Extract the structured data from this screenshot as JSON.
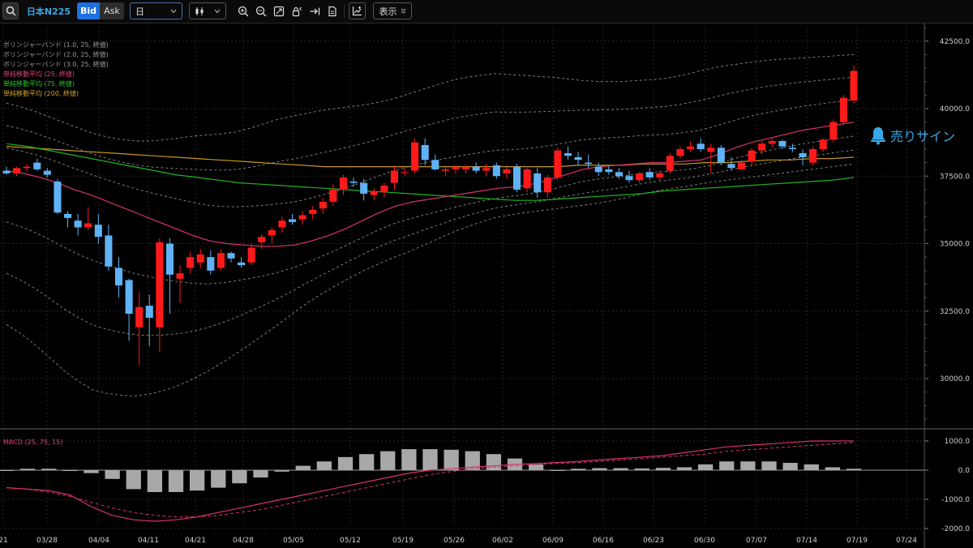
{
  "toolbar": {
    "symbol": "日本N225",
    "bid_label": "Bid",
    "ask_label": "Ask",
    "timeframe": "日",
    "display_label": "表示"
  },
  "legend": {
    "bb1": "ボリンジャーバンド (1.0, 25, 終値)",
    "bb2": "ボリンジャーバンド (2.0, 25, 終値)",
    "bb3": "ボリンジャーバンド (3.0, 25, 終値)",
    "sma25": "単純移動平均 (25, 終値)",
    "sma75": "単純移動平均 (75, 終値)",
    "sma200": "単純移動平均 (200, 終値)",
    "macd": "MACD (25, 75, 15)"
  },
  "signal": {
    "label": "売りサイン"
  },
  "colors": {
    "up": "#ff1a1a",
    "down": "#5fb2f5",
    "sma25": "#d6336c",
    "sma75": "#22b322",
    "sma200": "#c8961e",
    "bollinger": "#8a8a8a",
    "signal": "#3aa8e6",
    "accent": "#1f6fe0"
  },
  "chart_data": [
    {
      "type": "candlestick",
      "x_tick_labels": [
        "21",
        "03/28",
        "04/04",
        "04/11",
        "04/21",
        "04/28",
        "05/05",
        "05/12",
        "05/19",
        "05/26",
        "06/02",
        "06/09",
        "06/16",
        "06/23",
        "06/30",
        "07/07",
        "07/14",
        "07/19",
        "07/24"
      ],
      "y_tick_labels": [
        "42500.0",
        "40000.0",
        "37500.0",
        "35000.0",
        "32500.0",
        "30000.0"
      ],
      "ylim": [
        27800,
        43600
      ],
      "last_visible_date": "07/18",
      "candles": [
        {
          "d": "03/19",
          "o": 37700,
          "h": 37850,
          "l": 37550,
          "c": 37600
        },
        {
          "d": "03/21",
          "o": 37600,
          "h": 37850,
          "l": 37500,
          "c": 37800
        },
        {
          "d": "03/24",
          "o": 37800,
          "h": 37950,
          "l": 37650,
          "c": 37850
        },
        {
          "d": "03/25",
          "o": 38000,
          "h": 38150,
          "l": 37700,
          "c": 37750
        },
        {
          "d": "03/26",
          "o": 37700,
          "h": 37800,
          "l": 37450,
          "c": 37550
        },
        {
          "d": "03/27",
          "o": 37300,
          "h": 37400,
          "l": 36100,
          "c": 36150
        },
        {
          "d": "03/28",
          "o": 36100,
          "h": 36200,
          "l": 35600,
          "c": 35950
        },
        {
          "d": "03/31",
          "o": 35850,
          "h": 36100,
          "l": 35300,
          "c": 35600
        },
        {
          "d": "04/01",
          "o": 35600,
          "h": 36350,
          "l": 35500,
          "c": 35750
        },
        {
          "d": "04/02",
          "o": 35700,
          "h": 36100,
          "l": 35000,
          "c": 35250
        },
        {
          "d": "04/03",
          "o": 35300,
          "h": 35700,
          "l": 34000,
          "c": 34150
        },
        {
          "d": "04/04",
          "o": 34100,
          "h": 34500,
          "l": 33000,
          "c": 33450
        },
        {
          "d": "04/07",
          "o": 33650,
          "h": 33700,
          "l": 31400,
          "c": 32400
        },
        {
          "d": "04/08",
          "o": 31900,
          "h": 33200,
          "l": 30500,
          "c": 32650
        },
        {
          "d": "04/09",
          "o": 32700,
          "h": 33100,
          "l": 31200,
          "c": 32250
        },
        {
          "d": "04/10",
          "o": 31900,
          "h": 35200,
          "l": 31000,
          "c": 35050
        },
        {
          "d": "04/11",
          "o": 35000,
          "h": 35200,
          "l": 32400,
          "c": 33850
        },
        {
          "d": "04/14",
          "o": 33700,
          "h": 34200,
          "l": 32800,
          "c": 33900
        },
        {
          "d": "04/15",
          "o": 34100,
          "h": 34700,
          "l": 33900,
          "c": 34500
        },
        {
          "d": "04/16",
          "o": 34300,
          "h": 34800,
          "l": 34100,
          "c": 34600
        },
        {
          "d": "04/17",
          "o": 34500,
          "h": 34750,
          "l": 33850,
          "c": 34000
        },
        {
          "d": "04/18",
          "o": 34100,
          "h": 34800,
          "l": 34000,
          "c": 34650
        },
        {
          "d": "04/21",
          "o": 34650,
          "h": 34700,
          "l": 34300,
          "c": 34450
        },
        {
          "d": "04/22",
          "o": 34300,
          "h": 34500,
          "l": 34100,
          "c": 34200
        },
        {
          "d": "04/23",
          "o": 34300,
          "h": 35000,
          "l": 34200,
          "c": 34850
        },
        {
          "d": "04/24",
          "o": 35050,
          "h": 35350,
          "l": 34800,
          "c": 35250
        },
        {
          "d": "04/25",
          "o": 35300,
          "h": 35600,
          "l": 35000,
          "c": 35500
        },
        {
          "d": "04/28",
          "o": 35600,
          "h": 36000,
          "l": 35400,
          "c": 35850
        },
        {
          "d": "04/30",
          "o": 35900,
          "h": 36100,
          "l": 35700,
          "c": 35800
        },
        {
          "d": "05/01",
          "o": 35900,
          "h": 36200,
          "l": 35700,
          "c": 36050
        },
        {
          "d": "05/02",
          "o": 36100,
          "h": 36400,
          "l": 35900,
          "c": 36250
        },
        {
          "d": "05/07",
          "o": 36300,
          "h": 36700,
          "l": 36100,
          "c": 36550
        },
        {
          "d": "05/08",
          "o": 36550,
          "h": 37200,
          "l": 36400,
          "c": 37000
        },
        {
          "d": "05/09",
          "o": 37000,
          "h": 37550,
          "l": 36800,
          "c": 37450
        },
        {
          "d": "05/12",
          "o": 37300,
          "h": 37450,
          "l": 37100,
          "c": 37250
        },
        {
          "d": "05/13",
          "o": 37250,
          "h": 37400,
          "l": 36600,
          "c": 36850
        },
        {
          "d": "05/14",
          "o": 36800,
          "h": 37050,
          "l": 36600,
          "c": 36950
        },
        {
          "d": "05/15",
          "o": 36900,
          "h": 37250,
          "l": 36700,
          "c": 37150
        },
        {
          "d": "05/16",
          "o": 37250,
          "h": 37900,
          "l": 37000,
          "c": 37700
        },
        {
          "d": "05/19",
          "o": 37650,
          "h": 37800,
          "l": 37500,
          "c": 37650
        },
        {
          "d": "05/20",
          "o": 37700,
          "h": 38900,
          "l": 37600,
          "c": 38750
        },
        {
          "d": "05/21",
          "o": 38650,
          "h": 38900,
          "l": 37900,
          "c": 38100
        },
        {
          "d": "05/22",
          "o": 38100,
          "h": 38300,
          "l": 37700,
          "c": 37750
        },
        {
          "d": "05/23",
          "o": 37700,
          "h": 37900,
          "l": 37500,
          "c": 37750
        },
        {
          "d": "05/26",
          "o": 37750,
          "h": 37900,
          "l": 37600,
          "c": 37850
        },
        {
          "d": "05/27",
          "o": 37750,
          "h": 37900,
          "l": 37600,
          "c": 37850
        },
        {
          "d": "05/28",
          "o": 37850,
          "h": 38000,
          "l": 37600,
          "c": 37700
        },
        {
          "d": "05/29",
          "o": 37700,
          "h": 37950,
          "l": 37500,
          "c": 37800
        },
        {
          "d": "05/30",
          "o": 37900,
          "h": 38000,
          "l": 37400,
          "c": 37500
        },
        {
          "d": "06/02",
          "o": 37600,
          "h": 37850,
          "l": 37400,
          "c": 37750
        },
        {
          "d": "06/03",
          "o": 37850,
          "h": 37950,
          "l": 36900,
          "c": 37000
        },
        {
          "d": "06/04",
          "o": 37050,
          "h": 37800,
          "l": 36900,
          "c": 37750
        },
        {
          "d": "06/05",
          "o": 37600,
          "h": 37800,
          "l": 36700,
          "c": 36900
        },
        {
          "d": "06/06",
          "o": 36900,
          "h": 37550,
          "l": 36700,
          "c": 37450
        },
        {
          "d": "06/09",
          "o": 37450,
          "h": 38550,
          "l": 37350,
          "c": 38450
        },
        {
          "d": "06/10",
          "o": 38350,
          "h": 38600,
          "l": 38100,
          "c": 38250
        },
        {
          "d": "06/11",
          "o": 38200,
          "h": 38400,
          "l": 37900,
          "c": 38100
        },
        {
          "d": "06/12",
          "o": 38000,
          "h": 38300,
          "l": 37800,
          "c": 37950
        },
        {
          "d": "06/13",
          "o": 37850,
          "h": 38000,
          "l": 37500,
          "c": 37650
        },
        {
          "d": "06/16",
          "o": 37750,
          "h": 37900,
          "l": 37550,
          "c": 37650
        },
        {
          "d": "06/17",
          "o": 37650,
          "h": 37800,
          "l": 37400,
          "c": 37500
        },
        {
          "d": "06/18",
          "o": 37500,
          "h": 37700,
          "l": 37250,
          "c": 37350
        },
        {
          "d": "06/19",
          "o": 37350,
          "h": 37650,
          "l": 37250,
          "c": 37600
        },
        {
          "d": "06/20",
          "o": 37650,
          "h": 37800,
          "l": 37350,
          "c": 37450
        },
        {
          "d": "06/23",
          "o": 37450,
          "h": 37700,
          "l": 37300,
          "c": 37600
        },
        {
          "d": "06/24",
          "o": 37700,
          "h": 38350,
          "l": 37600,
          "c": 38250
        },
        {
          "d": "06/25",
          "o": 38250,
          "h": 38600,
          "l": 38150,
          "c": 38500
        },
        {
          "d": "06/26",
          "o": 38500,
          "h": 38800,
          "l": 38400,
          "c": 38600
        },
        {
          "d": "06/27",
          "o": 38700,
          "h": 38900,
          "l": 38400,
          "c": 38500
        },
        {
          "d": "06/30",
          "o": 38400,
          "h": 38700,
          "l": 37600,
          "c": 38550
        },
        {
          "d": "07/01",
          "o": 38550,
          "h": 38650,
          "l": 37900,
          "c": 38000
        },
        {
          "d": "07/02",
          "o": 37950,
          "h": 38200,
          "l": 37700,
          "c": 37800
        },
        {
          "d": "07/03",
          "o": 37750,
          "h": 38100,
          "l": 37700,
          "c": 38000
        },
        {
          "d": "07/04",
          "o": 38050,
          "h": 38550,
          "l": 37900,
          "c": 38450
        },
        {
          "d": "07/07",
          "o": 38450,
          "h": 38800,
          "l": 38300,
          "c": 38700
        },
        {
          "d": "07/08",
          "o": 38700,
          "h": 38900,
          "l": 38550,
          "c": 38800
        },
        {
          "d": "07/09",
          "o": 38800,
          "h": 38850,
          "l": 38500,
          "c": 38600
        },
        {
          "d": "07/10",
          "o": 38550,
          "h": 38700,
          "l": 38400,
          "c": 38500
        },
        {
          "d": "07/11",
          "o": 38350,
          "h": 38500,
          "l": 37900,
          "c": 38200
        },
        {
          "d": "07/14",
          "o": 38000,
          "h": 38600,
          "l": 37900,
          "c": 38500
        },
        {
          "d": "07/15",
          "o": 38500,
          "h": 38900,
          "l": 38400,
          "c": 38850
        },
        {
          "d": "07/16",
          "o": 38850,
          "h": 39600,
          "l": 38750,
          "c": 39500
        },
        {
          "d": "07/17",
          "o": 39500,
          "h": 40500,
          "l": 39400,
          "c": 40400
        },
        {
          "d": "07/18",
          "o": 40300,
          "h": 41600,
          "l": 40200,
          "c": 41400
        }
      ],
      "sma25": [
        37700,
        37600,
        37450,
        37250,
        37000,
        36800,
        36550,
        36300,
        36050,
        35800,
        35550,
        35300,
        35100,
        35000,
        34950,
        34900,
        34900,
        34950,
        35100,
        35300,
        35550,
        35850,
        36150,
        36400,
        36550,
        36650,
        36750,
        36850,
        36950,
        37050,
        37100,
        37200,
        37350,
        37550,
        37750,
        37850,
        37900,
        37950,
        38000,
        38000,
        38050,
        38100,
        38300,
        38550,
        38750,
        38900,
        39050,
        39200,
        39300,
        39400,
        39500
      ],
      "sma75": [
        38700,
        38600,
        38450,
        38300,
        38150,
        38000,
        37850,
        37700,
        37550,
        37450,
        37350,
        37250,
        37200,
        37150,
        37100,
        37050,
        37000,
        36950,
        36900,
        36850,
        36800,
        36750,
        36700,
        36650,
        36600,
        36600,
        36650,
        36700,
        36750,
        36800,
        36850,
        36950,
        37000,
        37050,
        37100,
        37150,
        37200,
        37250,
        37300,
        37350,
        37450
      ],
      "sma200": [
        38600,
        38550,
        38500,
        38450,
        38400,
        38350,
        38300,
        38250,
        38200,
        38150,
        38100,
        38050,
        38000,
        37950,
        37900,
        37850,
        37850,
        37850,
        37850,
        37850,
        37850,
        37850,
        37850,
        37850,
        37850,
        37850,
        37850,
        37900,
        37900,
        37900,
        37950,
        37950,
        37950,
        38000,
        38000,
        38050,
        38100,
        38100,
        38150,
        38150,
        38200
      ],
      "bollinger_upper_3": [
        40200,
        40000,
        39700,
        39400,
        39100,
        38900,
        38800,
        38800,
        38900,
        39000,
        39050,
        39150,
        39400,
        39650,
        39800,
        39950,
        40050,
        40150,
        40300,
        40550,
        40800,
        41050,
        41200,
        41300,
        41250,
        41200,
        41150,
        41050,
        41000,
        41000,
        41050,
        41100,
        41250,
        41450,
        41600,
        41700,
        41800,
        41850,
        41900,
        41950,
        42000
      ],
      "bollinger_lower_3": [
        32000,
        31500,
        30800,
        30100,
        29600,
        29400,
        29350,
        29450,
        29700,
        30050,
        30500,
        31000,
        31550,
        32100,
        32700,
        33200,
        33650,
        34050,
        34400,
        34700,
        35050,
        35400,
        35700,
        35950,
        36100,
        36200,
        36300,
        36400,
        36500,
        36650,
        36850,
        37000,
        37100,
        37250,
        37350,
        37450,
        37550,
        37650,
        37750,
        37850,
        37950
      ],
      "macd_ylim": [
        -2100,
        1150
      ],
      "macd_y_ticks": [
        "1000.0",
        "0.0",
        "-1000.0",
        "-2000.0"
      ],
      "macd_line": [
        -600,
        -650,
        -700,
        -850,
        -1250,
        -1550,
        -1700,
        -1750,
        -1700,
        -1600,
        -1450,
        -1300,
        -1150,
        -1000,
        -850,
        -700,
        -550,
        -400,
        -250,
        -100,
        0,
        50,
        100,
        150,
        200,
        230,
        260,
        300,
        350,
        400,
        450,
        500,
        600,
        700,
        800,
        850,
        900,
        950,
        1000,
        1000,
        1000
      ],
      "macd_signal": [
        -600,
        -650,
        -750,
        -900,
        -1100,
        -1300,
        -1450,
        -1550,
        -1600,
        -1600,
        -1550,
        -1450,
        -1350,
        -1200,
        -1050,
        -900,
        -750,
        -600,
        -450,
        -300,
        -150,
        -50,
        50,
        100,
        150,
        200,
        230,
        260,
        300,
        350,
        400,
        450,
        500,
        550,
        650,
        700,
        750,
        800,
        850,
        900,
        950
      ],
      "macd_histogram": [
        0,
        50,
        50,
        0,
        -100,
        -300,
        -650,
        -750,
        -750,
        -700,
        -600,
        -450,
        -250,
        -50,
        150,
        300,
        450,
        550,
        650,
        720,
        720,
        700,
        650,
        550,
        400,
        200,
        0,
        50,
        70,
        70,
        60,
        80,
        100,
        200,
        300,
        300,
        300,
        250,
        200,
        100,
        50
      ]
    }
  ]
}
